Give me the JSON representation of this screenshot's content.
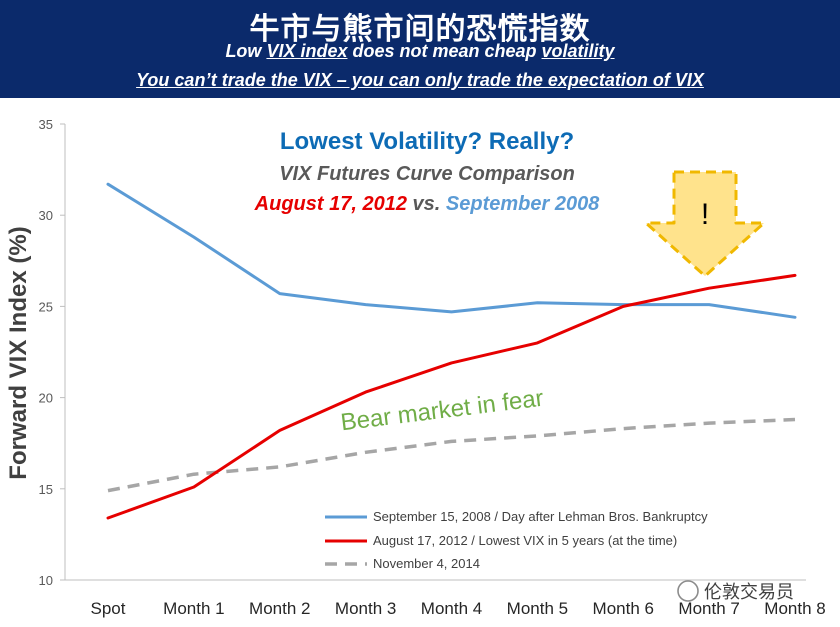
{
  "header": {
    "title": "牛市与熊市间的恐慌指数",
    "subtitle1_a": "Low ",
    "subtitle1_b": "VIX index",
    "subtitle1_c": " does not mean cheap ",
    "subtitle1_d": "volatility",
    "subtitle2": "You can’t trade the VIX – you can only trade the expectation of VIX",
    "background_color": "#0b2a6b"
  },
  "chart_data": {
    "type": "line",
    "title": "Lowest Volatility? Really?",
    "subtitle": "VIX Futures Curve Comparison",
    "date_red": "August 17, 2012",
    "date_vs": " vs. ",
    "date_blue": "September 2008",
    "ylabel": "Forward VIX Index (%)",
    "xlabel": "",
    "ylim": [
      10,
      35
    ],
    "yticks": [
      10,
      15,
      20,
      25,
      30,
      35
    ],
    "categories": [
      "Spot",
      "Month 1",
      "Month 2",
      "Month 3",
      "Month 4",
      "Month 5",
      "Month 6",
      "Month 7",
      "Month 8"
    ],
    "series": [
      {
        "name": "September 15, 2008 / Day after Lehman Bros. Bankruptcy",
        "color": "#5b9bd5",
        "dash": "solid",
        "values": [
          31.7,
          28.8,
          25.7,
          25.1,
          24.7,
          25.2,
          25.1,
          25.1,
          24.4
        ]
      },
      {
        "name": "August 17, 2012 / Lowest VIX in 5 years (at the time)",
        "color": "#e60000",
        "dash": "solid",
        "values": [
          13.4,
          15.1,
          18.2,
          20.3,
          21.9,
          23.0,
          25.0,
          26.0,
          26.7
        ]
      },
      {
        "name": "November 4, 2014",
        "color": "#a6a6a6",
        "dash": "dashed",
        "values": [
          14.9,
          15.8,
          16.2,
          17.0,
          17.6,
          17.9,
          18.3,
          18.6,
          18.8
        ]
      }
    ],
    "annotation": "Bear market in fear",
    "annotation_color": "#70ad47",
    "arrow_label": "!",
    "arrow_color": "#ffd966",
    "grid": false,
    "legend_position": "bottom-right"
  },
  "watermark": "伦敦交易员"
}
